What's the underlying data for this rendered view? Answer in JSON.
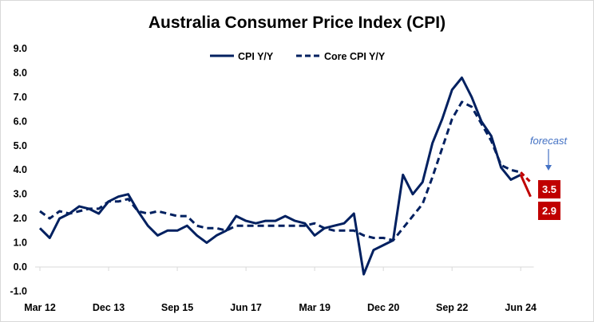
{
  "chart_data": {
    "type": "line",
    "title": "Australia Consumer Price Index (CPI)",
    "xlabel": "",
    "ylabel": "",
    "ylim": [
      -1.0,
      9.0
    ],
    "yticks": [
      "-1.0",
      "0.0",
      "1.0",
      "2.0",
      "3.0",
      "4.0",
      "5.0",
      "6.0",
      "7.0",
      "8.0",
      "9.0"
    ],
    "x_tick_labels": [
      {
        "label": "Mar 12",
        "index": 0
      },
      {
        "label": "Dec 13",
        "index": 7
      },
      {
        "label": "Sep 15",
        "index": 14
      },
      {
        "label": "Jun 17",
        "index": 21
      },
      {
        "label": "Mar 19",
        "index": 28
      },
      {
        "label": "Dec 20",
        "index": 35
      },
      {
        "label": "Sep 22",
        "index": 42
      },
      {
        "label": "Jun 24",
        "index": 49
      }
    ],
    "frequency": "quarterly",
    "grid": false,
    "legend": "top-center",
    "series": [
      {
        "name": "CPI Y/Y",
        "style": "solid",
        "color": "#002060",
        "values": [
          1.6,
          1.2,
          2.0,
          2.2,
          2.5,
          2.4,
          2.2,
          2.7,
          2.9,
          3.0,
          2.3,
          1.7,
          1.3,
          1.5,
          1.5,
          1.7,
          1.3,
          1.0,
          1.3,
          1.5,
          2.1,
          1.9,
          1.8,
          1.9,
          1.9,
          2.1,
          1.9,
          1.8,
          1.3,
          1.6,
          1.7,
          1.8,
          2.2,
          -0.3,
          0.7,
          0.9,
          1.1,
          3.8,
          3.0,
          3.5,
          5.1,
          6.1,
          7.3,
          7.8,
          7.0,
          6.0,
          5.4,
          4.1,
          3.6,
          3.8
        ],
        "forecast": 2.9
      },
      {
        "name": "Core CPI Y/Y",
        "style": "dashed",
        "color": "#002060",
        "values": [
          2.3,
          2.0,
          2.3,
          2.2,
          2.3,
          2.4,
          2.4,
          2.7,
          2.7,
          2.8,
          2.3,
          2.2,
          2.3,
          2.2,
          2.1,
          2.1,
          1.7,
          1.6,
          1.6,
          1.5,
          1.7,
          1.7,
          1.7,
          1.7,
          1.7,
          1.7,
          1.7,
          1.7,
          1.8,
          1.6,
          1.5,
          1.5,
          1.5,
          1.3,
          1.2,
          1.2,
          1.1,
          1.6,
          2.1,
          2.6,
          3.7,
          4.9,
          6.1,
          6.8,
          6.6,
          5.9,
          5.2,
          4.2,
          4.0,
          3.9
        ],
        "forecast": 3.5
      }
    ],
    "forecast_color": "#c00000",
    "annotations": {
      "forecast_label": "forecast",
      "labels": [
        "3.5",
        "2.9"
      ],
      "arrow_color": "#4472c4"
    }
  }
}
